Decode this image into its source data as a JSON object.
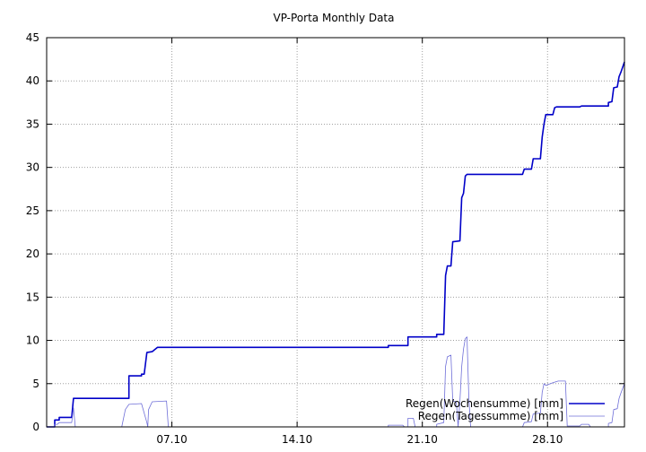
{
  "chart_data": {
    "type": "line",
    "title": "VP-Porta Monthly Data",
    "xlabel": "",
    "ylabel": "",
    "xlim": [
      0,
      32.3
    ],
    "ylim": [
      0,
      45
    ],
    "yticks": [
      0,
      5,
      10,
      15,
      20,
      25,
      30,
      35,
      40,
      45
    ],
    "xticks": [
      {
        "x": 7,
        "label": "07.10"
      },
      {
        "x": 14,
        "label": "14.10"
      },
      {
        "x": 21,
        "label": "21.10"
      },
      {
        "x": 28,
        "label": "28.10"
      }
    ],
    "grid": true,
    "legend_position": "bottom-right",
    "series": [
      {
        "name": "Regen(Wochensumme) [mm]",
        "color": "#0000c8",
        "points": [
          [
            0,
            0
          ],
          [
            0.45,
            0
          ],
          [
            0.45,
            0.8
          ],
          [
            0.7,
            0.8
          ],
          [
            0.7,
            1.1
          ],
          [
            1.4,
            1.1
          ],
          [
            1.5,
            3.3
          ],
          [
            4.6,
            3.3
          ],
          [
            4.6,
            5.9
          ],
          [
            5.3,
            5.9
          ],
          [
            5.3,
            6.1
          ],
          [
            5.45,
            6.1
          ],
          [
            5.6,
            8.6
          ],
          [
            5.9,
            8.7
          ],
          [
            6.2,
            9.2
          ],
          [
            19.1,
            9.2
          ],
          [
            19.1,
            9.4
          ],
          [
            20.2,
            9.4
          ],
          [
            20.2,
            10.4
          ],
          [
            21.8,
            10.4
          ],
          [
            21.8,
            10.7
          ],
          [
            22.2,
            10.7
          ],
          [
            22.3,
            17.5
          ],
          [
            22.4,
            18.6
          ],
          [
            22.6,
            18.6
          ],
          [
            22.7,
            21.4
          ],
          [
            23.1,
            21.5
          ],
          [
            23.2,
            26.5
          ],
          [
            23.3,
            27.0
          ],
          [
            23.4,
            29.0
          ],
          [
            23.5,
            29.2
          ],
          [
            26.6,
            29.2
          ],
          [
            26.7,
            29.8
          ],
          [
            27.1,
            29.8
          ],
          [
            27.2,
            31.0
          ],
          [
            27.6,
            31.0
          ],
          [
            27.7,
            33.5
          ],
          [
            27.8,
            35.0
          ],
          [
            27.9,
            36.1
          ],
          [
            28.3,
            36.1
          ],
          [
            28.4,
            36.9
          ],
          [
            28.5,
            37.0
          ],
          [
            29.8,
            37.0
          ],
          [
            29.9,
            37.1
          ],
          [
            31.4,
            37.1
          ],
          [
            31.4,
            37.5
          ],
          [
            31.6,
            37.6
          ],
          [
            31.7,
            39.2
          ],
          [
            31.9,
            39.3
          ],
          [
            32.0,
            40.5
          ],
          [
            32.1,
            41.0
          ],
          [
            32.3,
            42.2
          ]
        ]
      },
      {
        "name": "Regen(Tagessumme) [mm]",
        "color": "#6f6fd8",
        "points": [
          [
            0,
            0
          ],
          [
            0.45,
            0
          ],
          [
            0.45,
            0.3
          ],
          [
            0.6,
            0.3
          ],
          [
            0.7,
            0.5
          ],
          [
            1.4,
            0.5
          ],
          [
            1.5,
            2.2
          ],
          [
            1.6,
            0
          ],
          [
            4.2,
            0
          ],
          [
            4.4,
            2.0
          ],
          [
            4.6,
            2.6
          ],
          [
            5.3,
            2.7
          ],
          [
            5.6,
            0.5
          ],
          [
            5.65,
            0
          ],
          [
            5.7,
            2.0
          ],
          [
            5.9,
            2.9
          ],
          [
            6.7,
            3.0
          ],
          [
            6.8,
            0
          ],
          [
            19.1,
            0
          ],
          [
            19.1,
            0.2
          ],
          [
            19.9,
            0.2
          ],
          [
            20.0,
            0
          ],
          [
            20.2,
            0
          ],
          [
            20.2,
            1.0
          ],
          [
            20.5,
            1.0
          ],
          [
            20.6,
            0
          ],
          [
            21.8,
            0
          ],
          [
            21.8,
            0.3
          ],
          [
            22.2,
            0.5
          ],
          [
            22.3,
            7.0
          ],
          [
            22.4,
            8.1
          ],
          [
            22.6,
            8.3
          ],
          [
            22.7,
            3.0
          ],
          [
            22.9,
            2.9
          ],
          [
            23.0,
            0
          ],
          [
            23.1,
            3.0
          ],
          [
            23.2,
            7.0
          ],
          [
            23.3,
            9.0
          ],
          [
            23.4,
            10.2
          ],
          [
            23.5,
            10.4
          ],
          [
            23.6,
            3.5
          ],
          [
            23.7,
            0
          ],
          [
            26.6,
            0
          ],
          [
            26.7,
            0.5
          ],
          [
            27.1,
            0.6
          ],
          [
            27.2,
            1.5
          ],
          [
            27.6,
            1.6
          ],
          [
            27.7,
            4.0
          ],
          [
            27.8,
            5.0
          ],
          [
            27.9,
            4.8
          ],
          [
            28.3,
            5.1
          ],
          [
            28.6,
            5.3
          ],
          [
            29.0,
            5.3
          ],
          [
            29.1,
            0.1
          ],
          [
            29.8,
            0.1
          ],
          [
            29.9,
            0.3
          ],
          [
            30.3,
            0.3
          ],
          [
            30.4,
            0
          ],
          [
            31.4,
            0
          ],
          [
            31.4,
            0.4
          ],
          [
            31.6,
            0.5
          ],
          [
            31.7,
            2.0
          ],
          [
            31.9,
            2.1
          ],
          [
            32.0,
            3.3
          ],
          [
            32.1,
            3.9
          ],
          [
            32.3,
            5.0
          ]
        ]
      }
    ]
  }
}
